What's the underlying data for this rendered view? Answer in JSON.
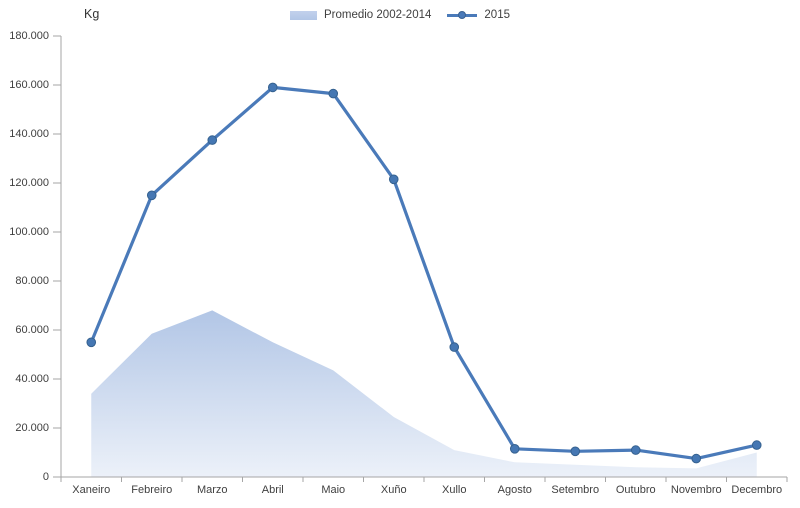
{
  "chart": {
    "unit_label": "Kg",
    "legend": [
      {
        "label": "Promedio 2002-2014",
        "swatch": "area"
      },
      {
        "label": "2015",
        "swatch": "line-marker"
      }
    ],
    "colors": {
      "line": "#4a7ab9",
      "marker_fill": "#4577b3",
      "marker_stroke": "#35618f",
      "area_top": "#b2c6e6",
      "area_bottom": "#ecf1f9",
      "legend_area_swatch": "#b7cbe7",
      "axis": "#a6a6a6",
      "text": "#404040"
    }
  },
  "chart_data": {
    "type": "area+line",
    "title": "",
    "ylabel": "Kg",
    "xlabel": "",
    "ylim": [
      0,
      180000
    ],
    "ytick_step": 20000,
    "ytick_labels": [
      "0",
      "20.000",
      "40.000",
      "60.000",
      "80.000",
      "100.000",
      "120.000",
      "140.000",
      "160.000",
      "180.000"
    ],
    "grid": false,
    "legend_position": "top-center",
    "categories": [
      "Xaneiro",
      "Febreiro",
      "Marzo",
      "Abril",
      "Maio",
      "Xuño",
      "Xullo",
      "Agosto",
      "Setembro",
      "Outubro",
      "Novembro",
      "Decembro"
    ],
    "series": [
      {
        "name": "Promedio 2002-2014",
        "type": "area",
        "values": [
          34000,
          58500,
          68000,
          55000,
          43500,
          24500,
          11000,
          6000,
          5000,
          4000,
          3500,
          10000
        ]
      },
      {
        "name": "2015",
        "type": "line",
        "marker": "circle",
        "values": [
          55000,
          115000,
          137500,
          159000,
          156500,
          121500,
          53000,
          11500,
          10500,
          11000,
          7500,
          13000
        ]
      }
    ]
  }
}
